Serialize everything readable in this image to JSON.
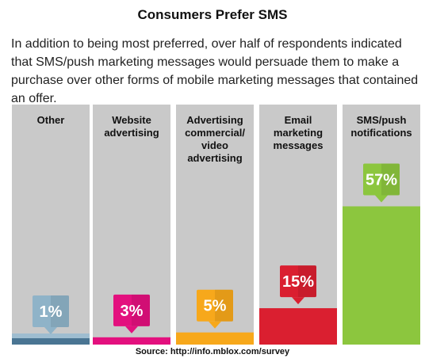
{
  "title": "Consumers Prefer SMS",
  "description": "In addition to being most preferred, over half of respondents indicated that SMS/push marketing messages would persuade them to make a purchase over other forms of mobile marketing messages that contained an offer.",
  "source": "Source: http://info.mblox.com/survey",
  "chart_data": {
    "type": "bar",
    "categories": [
      [
        "Other"
      ],
      [
        "Website",
        "advertising"
      ],
      [
        "Advertising",
        "commercial/",
        "video",
        "advertising"
      ],
      [
        "Email",
        "marketing",
        "messages"
      ],
      [
        "SMS/push",
        "notifications"
      ]
    ],
    "values": [
      1,
      3,
      5,
      15,
      57
    ],
    "value_labels": [
      "1%",
      "3%",
      "5%",
      "15%",
      "57%"
    ],
    "ylim": [
      0,
      65
    ],
    "colors": [
      "#4a7593",
      "#e3107e",
      "#f7a81b",
      "#da1f30",
      "#8cc63e"
    ],
    "badge_colors": [
      "#8fb3c8",
      "#e3107e",
      "#f7a81b",
      "#da1f30",
      "#8cc63e"
    ],
    "value_unit": "%"
  }
}
